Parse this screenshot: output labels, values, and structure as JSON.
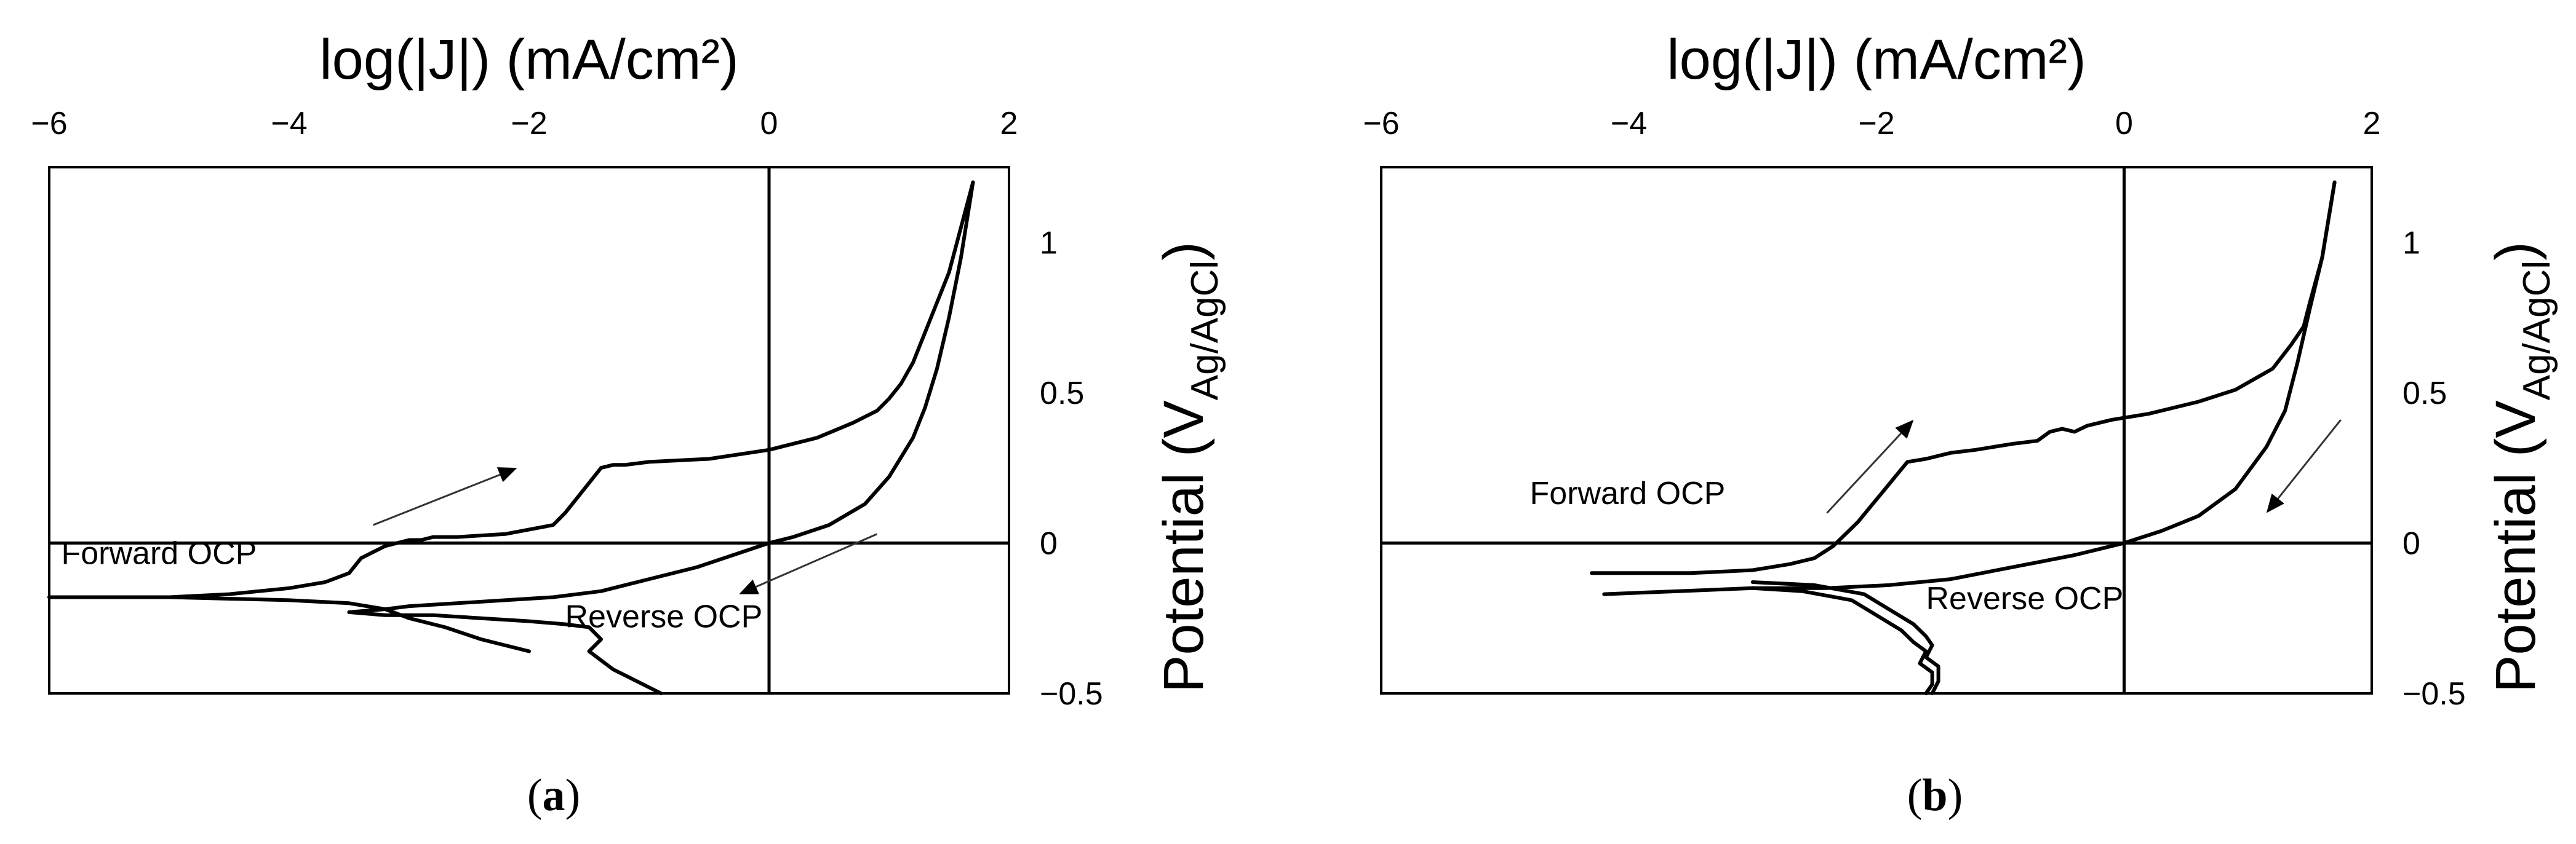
{
  "chart_data": [
    {
      "type": "line",
      "panel_label": "(a)",
      "panel_letter": "a",
      "xlabel": "log(|J|) (mA/cm²)",
      "ylabel": "Potential (V",
      "ylabel_sub": "Ag/AgCl",
      "ylabel_close": ")",
      "xlim": [
        -6,
        2
      ],
      "ylim": [
        -0.5,
        1.25
      ],
      "xticks": [
        -6,
        -4,
        -2,
        0,
        2
      ],
      "xtick_labels": [
        "−6",
        "−4",
        "−2",
        "0",
        "2"
      ],
      "yticks": [
        1,
        0.5,
        0,
        -0.5
      ],
      "ytick_labels": [
        "1",
        "0.5",
        "0",
        "−0.5"
      ],
      "grid": false,
      "annotations": [
        {
          "text": "Forward OCP",
          "x": -5.9,
          "y": -0.07
        },
        {
          "text": "Reverse OCP",
          "x": -1.7,
          "y": -0.28
        }
      ],
      "arrows": [
        {
          "from": [
            -3.3,
            0.06
          ],
          "to": [
            -2.1,
            0.25
          ]
        },
        {
          "from": [
            0.9,
            0.03
          ],
          "to": [
            -0.25,
            -0.17
          ]
        }
      ],
      "series": [
        {
          "x": [
            -6.0,
            -5.5,
            -5.0,
            -4.5,
            -4.0,
            -3.7,
            -3.5,
            -3.4,
            -3.3,
            -3.2,
            -3.1,
            -3.0,
            -2.9,
            -2.8,
            -2.6,
            -2.2,
            -1.8,
            -1.7,
            -1.6,
            -1.5,
            -1.4,
            -1.3,
            -1.2,
            -1.0,
            -0.5,
            0.0,
            0.4,
            0.7,
            0.9,
            1.0,
            1.1,
            1.2,
            1.3,
            1.4,
            1.5,
            1.6,
            1.7
          ],
          "y": [
            -0.18,
            -0.18,
            -0.18,
            -0.17,
            -0.15,
            -0.13,
            -0.1,
            -0.05,
            -0.03,
            -0.01,
            0.0,
            0.01,
            0.01,
            0.02,
            0.02,
            0.03,
            0.06,
            0.1,
            0.15,
            0.2,
            0.25,
            0.26,
            0.26,
            0.27,
            0.28,
            0.31,
            0.35,
            0.4,
            0.44,
            0.48,
            0.53,
            0.6,
            0.7,
            0.8,
            0.9,
            1.05,
            1.2
          ]
        },
        {
          "x": [
            1.7,
            1.6,
            1.5,
            1.4,
            1.3,
            1.2,
            1.0,
            0.8,
            0.5,
            0.2,
            0.0,
            -0.3,
            -0.6,
            -1.0,
            -1.4,
            -1.8,
            -2.2,
            -2.6,
            -3.0,
            -3.2,
            -3.5
          ],
          "y": [
            1.2,
            0.95,
            0.75,
            0.58,
            0.45,
            0.35,
            0.22,
            0.13,
            0.06,
            0.02,
            0.0,
            -0.04,
            -0.08,
            -0.12,
            -0.16,
            -0.18,
            -0.19,
            -0.2,
            -0.21,
            -0.22,
            -0.23
          ]
        },
        {
          "x": [
            -6.0,
            -5.0,
            -4.0,
            -3.5,
            -3.2,
            -3.0,
            -2.7,
            -2.4,
            -2.1,
            -2.0
          ],
          "y": [
            -0.18,
            -0.18,
            -0.19,
            -0.2,
            -0.22,
            -0.25,
            -0.28,
            -0.32,
            -0.35,
            -0.36
          ]
        },
        {
          "x": [
            -3.5,
            -3.2,
            -2.8,
            -2.4,
            -2.0,
            -1.7,
            -1.5,
            -1.4,
            -1.5,
            -1.4,
            -1.3,
            -1.1,
            -0.9
          ],
          "y": [
            -0.23,
            -0.24,
            -0.24,
            -0.25,
            -0.26,
            -0.27,
            -0.28,
            -0.32,
            -0.36,
            -0.39,
            -0.42,
            -0.46,
            -0.5
          ]
        }
      ]
    },
    {
      "type": "line",
      "panel_label": "(b)",
      "panel_letter": "b",
      "xlabel": "log(|J|) (mA/cm²)",
      "ylabel": "Potential (V",
      "ylabel_sub": "Ag/AgCl",
      "ylabel_close": ")",
      "xlim": [
        -6,
        2
      ],
      "ylim": [
        -0.5,
        1.25
      ],
      "xticks": [
        -6,
        -4,
        -2,
        0,
        2
      ],
      "xtick_labels": [
        "−6",
        "−4",
        "−2",
        "0",
        "2"
      ],
      "yticks": [
        1,
        0.5,
        0,
        -0.5
      ],
      "ytick_labels": [
        "1",
        "0.5",
        "0",
        "−0.5"
      ],
      "grid": false,
      "annotations": [
        {
          "text": "Forward OCP",
          "x": -4.8,
          "y": 0.13
        },
        {
          "text": "Reverse OCP",
          "x": -1.6,
          "y": -0.22
        }
      ],
      "arrows": [
        {
          "from": [
            -2.4,
            0.1
          ],
          "to": [
            -1.7,
            0.41
          ]
        },
        {
          "from": [
            1.75,
            0.41
          ],
          "to": [
            1.15,
            0.1
          ]
        }
      ],
      "series": [
        {
          "x": [
            -4.3,
            -3.5,
            -3.0,
            -2.7,
            -2.5,
            -2.35,
            -2.25,
            -2.15,
            -2.05,
            -1.95,
            -1.85,
            -1.75,
            -1.6,
            -1.5,
            -1.4,
            -1.2,
            -0.9,
            -0.7,
            -0.6,
            -0.5,
            -0.4,
            -0.3,
            -0.1,
            0.2,
            0.6,
            0.9,
            1.2,
            1.35,
            1.45,
            1.5,
            1.6,
            1.7
          ],
          "y": [
            -0.1,
            -0.1,
            -0.09,
            -0.07,
            -0.05,
            -0.01,
            0.03,
            0.07,
            0.12,
            0.17,
            0.22,
            0.27,
            0.28,
            0.29,
            0.3,
            0.31,
            0.33,
            0.34,
            0.37,
            0.38,
            0.37,
            0.39,
            0.41,
            0.43,
            0.47,
            0.51,
            0.58,
            0.66,
            0.72,
            0.8,
            0.95,
            1.2
          ]
        },
        {
          "x": [
            1.7,
            1.6,
            1.5,
            1.4,
            1.3,
            1.15,
            0.9,
            0.6,
            0.3,
            0.0,
            -0.4,
            -0.9,
            -1.4,
            -1.9,
            -2.4,
            -3.0,
            -3.6,
            -4.2
          ],
          "y": [
            1.2,
            0.95,
            0.78,
            0.6,
            0.44,
            0.32,
            0.18,
            0.09,
            0.04,
            0.0,
            -0.04,
            -0.08,
            -0.12,
            -0.14,
            -0.15,
            -0.15,
            -0.16,
            -0.17
          ]
        },
        {
          "x": [
            -3.0,
            -2.5,
            -2.1,
            -1.9,
            -1.7,
            -1.6,
            -1.55,
            -1.6,
            -1.5,
            -1.5,
            -1.55
          ],
          "y": [
            -0.13,
            -0.14,
            -0.17,
            -0.22,
            -0.27,
            -0.31,
            -0.34,
            -0.38,
            -0.41,
            -0.46,
            -0.5
          ]
        },
        {
          "x": [
            -3.0,
            -2.6,
            -2.2,
            -2.0,
            -1.8,
            -1.7,
            -1.6,
            -1.65,
            -1.55,
            -1.55,
            -1.6
          ],
          "y": [
            -0.15,
            -0.16,
            -0.19,
            -0.24,
            -0.29,
            -0.33,
            -0.36,
            -0.4,
            -0.43,
            -0.47,
            -0.5
          ]
        }
      ]
    }
  ]
}
